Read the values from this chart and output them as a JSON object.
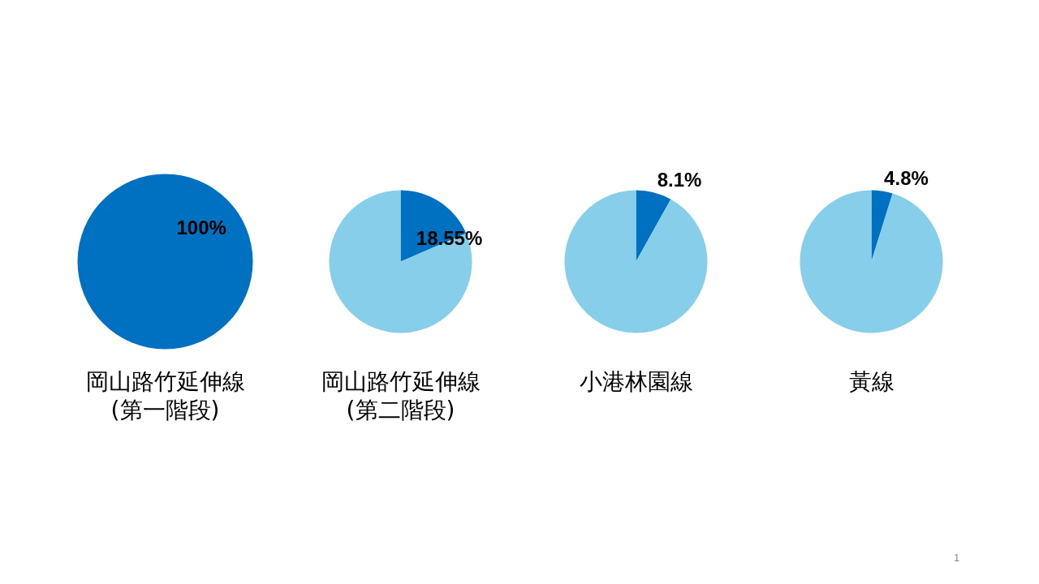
{
  "chart_data": [
    {
      "type": "pie",
      "title": "岡山路竹延伸線\n(第一階段)",
      "categories": [
        null
      ],
      "values": [
        100
      ],
      "colors": [
        "#0070c0"
      ],
      "value_labels": [
        "100%"
      ]
    },
    {
      "type": "pie",
      "title": "岡山路竹延伸線\n(第二階段)",
      "categories": [
        null,
        null
      ],
      "values": [
        18.55,
        81.45
      ],
      "colors": [
        "#0070c0",
        "#87ceeb"
      ],
      "value_labels": [
        "18.55%",
        null
      ]
    },
    {
      "type": "pie",
      "title": "小港林園線",
      "categories": [
        null,
        null
      ],
      "values": [
        8.1,
        91.9
      ],
      "colors": [
        "#0070c0",
        "#87ceeb"
      ],
      "value_labels": [
        "8.1%",
        null
      ]
    },
    {
      "type": "pie",
      "title": "黃線",
      "categories": [
        null,
        null
      ],
      "values": [
        4.8,
        95.2
      ],
      "colors": [
        "#0070c0",
        "#87ceeb"
      ],
      "value_labels": [
        "4.8%",
        null
      ],
      "annotations": [
        "1"
      ]
    }
  ]
}
